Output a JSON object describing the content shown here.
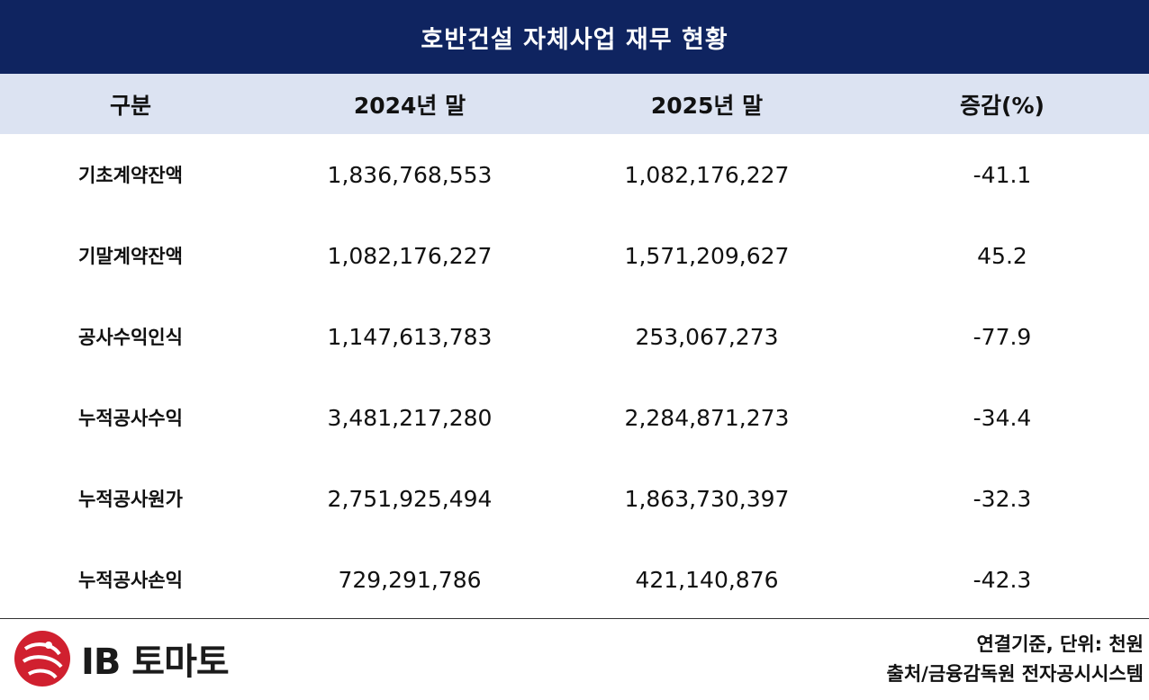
{
  "title": "호반건설 자체사업 재무 현황",
  "headers": [
    "구분",
    "2024년 말",
    "2025년 말",
    "증감(%)"
  ],
  "rows": [
    {
      "label": "기초계약잔액",
      "y2024": "1,836,768,553",
      "y2025": "1,082,176,227",
      "change": "-41.1"
    },
    {
      "label": "기말계약잔액",
      "y2024": "1,082,176,227",
      "y2025": "1,571,209,627",
      "change": "45.2"
    },
    {
      "label": "공사수익인식",
      "y2024": "1,147,613,783",
      "y2025": "253,067,273",
      "change": "-77.9"
    },
    {
      "label": "누적공사수익",
      "y2024": "3,481,217,280",
      "y2025": "2,284,871,273",
      "change": "-34.4"
    },
    {
      "label": "누적공사원가",
      "y2024": "2,751,925,494",
      "y2025": "1,863,730,397",
      "change": "-32.3"
    },
    {
      "label": "누적공사손익",
      "y2024": "729,291,786",
      "y2025": "421,140,876",
      "change": "-42.3"
    }
  ],
  "footer": {
    "logo_text": "IB 토마토",
    "basis_note": "연결기준, 단위: 천원",
    "source_note": "출처/금융감독원 전자공시시스템"
  },
  "chart_data": {
    "type": "table",
    "title": "호반건설 자체사업 재무 현황",
    "columns": [
      "구분",
      "2024년 말",
      "2025년 말",
      "증감(%)"
    ],
    "rows": [
      [
        "기초계약잔액",
        1836768553,
        1082176227,
        -41.1
      ],
      [
        "기말계약잔액",
        1082176227,
        1571209627,
        45.2
      ],
      [
        "공사수익인식",
        1147613783,
        253067273,
        -77.9
      ],
      [
        "누적공사수익",
        3481217280,
        2284871273,
        -34.4
      ],
      [
        "누적공사원가",
        2751925494,
        1863730397,
        -32.3
      ],
      [
        "누적공사손익",
        729291786,
        421140876,
        -42.3
      ]
    ],
    "unit": "천원"
  },
  "colors": {
    "title_bg": "#0f2460",
    "header_bg": "#dce3f2",
    "logo_red": "#d0202f"
  }
}
